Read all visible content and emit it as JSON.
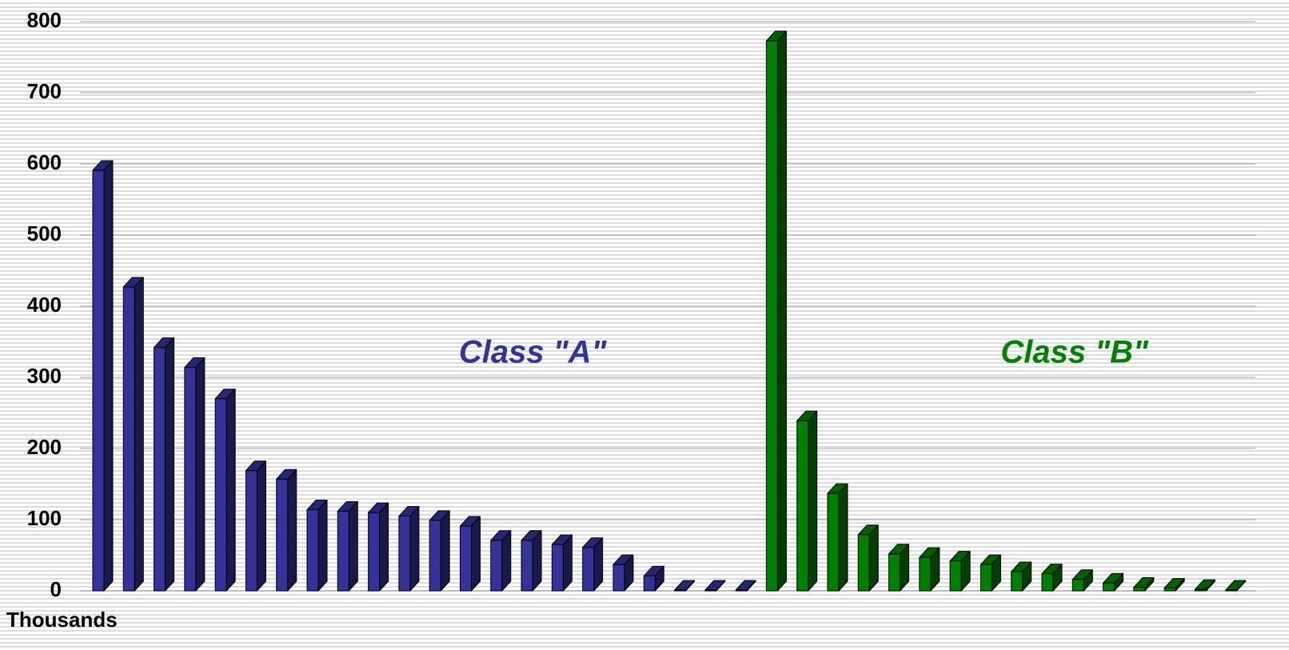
{
  "chart_data": {
    "type": "bar3d",
    "y_unit_label": "Thousands",
    "annotations": [
      {
        "text": "Class \"A\"",
        "series": 0
      },
      {
        "text": "Class \"B\"",
        "series": 1
      }
    ],
    "categories": [
      null,
      null,
      null,
      null,
      null,
      null,
      null,
      null,
      null,
      null,
      null,
      null,
      null,
      null,
      null,
      null,
      null,
      null,
      null,
      null,
      null,
      null,
      null,
      null,
      null,
      null,
      null,
      null,
      null,
      null,
      null,
      null,
      null,
      null,
      null,
      null,
      null,
      null
    ],
    "series": [
      {
        "name": "Class A",
        "color": "#333399",
        "values": [
          591,
          427,
          342,
          314,
          270,
          169,
          157,
          114,
          112,
          110,
          105,
          99,
          91,
          71,
          71,
          65,
          61,
          37,
          21,
          1,
          1,
          1,
          null,
          null,
          null,
          null,
          null,
          null,
          null,
          null,
          null,
          null,
          null,
          null,
          null,
          null,
          null,
          null
        ]
      },
      {
        "name": "Class B",
        "color": "#008000",
        "values": [
          null,
          null,
          null,
          null,
          null,
          null,
          null,
          null,
          null,
          null,
          null,
          null,
          null,
          null,
          null,
          null,
          null,
          null,
          null,
          null,
          null,
          null,
          773,
          239,
          137,
          79,
          52,
          47,
          42,
          37,
          27,
          24,
          16,
          11,
          5,
          4,
          2,
          1
        ]
      }
    ],
    "ylim": [
      0,
      800
    ],
    "yticks": [
      0,
      100,
      200,
      300,
      400,
      500,
      600,
      700,
      800
    ],
    "grid": true
  }
}
